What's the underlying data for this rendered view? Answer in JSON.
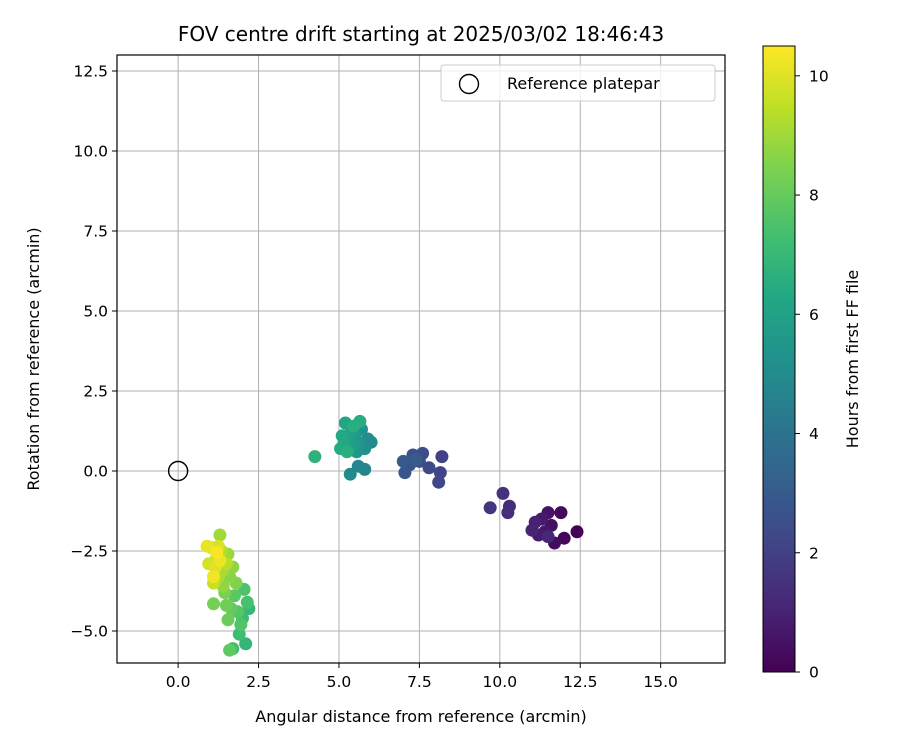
{
  "chart_data": {
    "type": "scatter",
    "title": "FOV centre drift starting at 2025/03/02 18:46:43",
    "xlabel": "Angular distance from reference (arcmin)",
    "ylabel": "Rotation from reference (arcmin)",
    "xlim": [
      -1.9,
      17.0
    ],
    "ylim": [
      -6.0,
      13.0
    ],
    "xticks": [
      0.0,
      2.5,
      5.0,
      7.5,
      10.0,
      12.5,
      15.0
    ],
    "xtick_labels": [
      "0.0",
      "2.5",
      "5.0",
      "7.5",
      "10.0",
      "12.5",
      "15.0"
    ],
    "yticks": [
      -5.0,
      -2.5,
      0.0,
      2.5,
      5.0,
      7.5,
      10.0,
      12.5
    ],
    "ytick_labels": [
      "−5.0",
      "−2.5",
      "0.0",
      "2.5",
      "5.0",
      "7.5",
      "10.0",
      "12.5"
    ],
    "grid": true,
    "legend": {
      "position": "top-right",
      "entries": [
        {
          "label": "Reference platepar",
          "marker": "open-circle"
        }
      ]
    },
    "colorbar": {
      "label": "Hours from first FF file",
      "range": [
        0,
        10.5
      ],
      "ticks": [
        0,
        2,
        4,
        6,
        8,
        10
      ],
      "tick_labels": [
        "0",
        "2",
        "4",
        "6",
        "8",
        "10"
      ],
      "colormap": "viridis"
    },
    "reference_point": {
      "x": 0.0,
      "y": 0.0
    },
    "points": [
      {
        "x": 12.4,
        "y": -1.9,
        "t": 0.05
      },
      {
        "x": 12.0,
        "y": -2.1,
        "t": 0.15
      },
      {
        "x": 11.9,
        "y": -1.3,
        "t": 0.25
      },
      {
        "x": 11.7,
        "y": -2.25,
        "t": 0.35
      },
      {
        "x": 11.6,
        "y": -1.7,
        "t": 0.45
      },
      {
        "x": 11.5,
        "y": -1.3,
        "t": 0.55
      },
      {
        "x": 11.4,
        "y": -1.9,
        "t": 0.65
      },
      {
        "x": 11.3,
        "y": -1.5,
        "t": 0.75
      },
      {
        "x": 11.2,
        "y": -2.0,
        "t": 0.85
      },
      {
        "x": 11.1,
        "y": -1.6,
        "t": 0.95
      },
      {
        "x": 11.0,
        "y": -1.85,
        "t": 1.05
      },
      {
        "x": 11.5,
        "y": -2.05,
        "t": 1.15
      },
      {
        "x": 10.3,
        "y": -1.1,
        "t": 1.3
      },
      {
        "x": 10.25,
        "y": -1.3,
        "t": 1.4
      },
      {
        "x": 10.1,
        "y": -0.7,
        "t": 1.5
      },
      {
        "x": 9.7,
        "y": -1.15,
        "t": 1.6
      },
      {
        "x": 8.2,
        "y": 0.45,
        "t": 2.0
      },
      {
        "x": 8.15,
        "y": -0.05,
        "t": 2.1
      },
      {
        "x": 8.1,
        "y": -0.35,
        "t": 2.2
      },
      {
        "x": 7.8,
        "y": 0.1,
        "t": 2.3
      },
      {
        "x": 7.6,
        "y": 0.55,
        "t": 2.4
      },
      {
        "x": 7.5,
        "y": 0.3,
        "t": 2.5
      },
      {
        "x": 7.3,
        "y": 0.5,
        "t": 2.6
      },
      {
        "x": 7.2,
        "y": 0.2,
        "t": 2.7
      },
      {
        "x": 7.05,
        "y": -0.05,
        "t": 2.8
      },
      {
        "x": 7.0,
        "y": 0.3,
        "t": 2.9
      },
      {
        "x": 7.4,
        "y": 0.35,
        "t": 3.0
      },
      {
        "x": 5.8,
        "y": 0.05,
        "t": 4.7
      },
      {
        "x": 5.6,
        "y": 0.15,
        "t": 4.8
      },
      {
        "x": 5.35,
        "y": -0.1,
        "t": 4.9
      },
      {
        "x": 6.0,
        "y": 0.9,
        "t": 5.0
      },
      {
        "x": 5.9,
        "y": 1.0,
        "t": 5.1
      },
      {
        "x": 5.8,
        "y": 0.7,
        "t": 5.2
      },
      {
        "x": 5.7,
        "y": 1.3,
        "t": 5.3
      },
      {
        "x": 5.6,
        "y": 0.9,
        "t": 5.4
      },
      {
        "x": 5.55,
        "y": 0.6,
        "t": 5.5
      },
      {
        "x": 5.5,
        "y": 1.1,
        "t": 5.6
      },
      {
        "x": 5.45,
        "y": 0.8,
        "t": 5.7
      },
      {
        "x": 5.4,
        "y": 1.25,
        "t": 5.8
      },
      {
        "x": 5.3,
        "y": 0.7,
        "t": 5.9
      },
      {
        "x": 5.25,
        "y": 1.0,
        "t": 6.0
      },
      {
        "x": 5.2,
        "y": 1.5,
        "t": 6.1
      },
      {
        "x": 5.15,
        "y": 0.85,
        "t": 6.2
      },
      {
        "x": 5.1,
        "y": 1.1,
        "t": 6.3
      },
      {
        "x": 5.05,
        "y": 0.7,
        "t": 6.4
      },
      {
        "x": 5.65,
        "y": 1.55,
        "t": 6.5
      },
      {
        "x": 5.45,
        "y": 1.4,
        "t": 6.55
      },
      {
        "x": 5.25,
        "y": 0.6,
        "t": 6.6
      },
      {
        "x": 4.25,
        "y": 0.45,
        "t": 6.7
      },
      {
        "x": 2.1,
        "y": -5.4,
        "t": 6.9
      },
      {
        "x": 2.2,
        "y": -4.3,
        "t": 7.0
      },
      {
        "x": 2.0,
        "y": -4.6,
        "t": 7.1
      },
      {
        "x": 1.9,
        "y": -5.1,
        "t": 7.2
      },
      {
        "x": 1.7,
        "y": -5.55,
        "t": 7.3
      },
      {
        "x": 2.15,
        "y": -4.1,
        "t": 7.4
      },
      {
        "x": 2.05,
        "y": -3.7,
        "t": 7.5
      },
      {
        "x": 1.95,
        "y": -4.8,
        "t": 7.6
      },
      {
        "x": 1.85,
        "y": -4.4,
        "t": 7.7
      },
      {
        "x": 1.75,
        "y": -3.9,
        "t": 7.8
      },
      {
        "x": 1.6,
        "y": -5.6,
        "t": 7.9
      },
      {
        "x": 1.65,
        "y": -4.3,
        "t": 8.0
      },
      {
        "x": 1.55,
        "y": -4.65,
        "t": 8.1
      },
      {
        "x": 1.5,
        "y": -4.2,
        "t": 8.2
      },
      {
        "x": 1.1,
        "y": -4.15,
        "t": 8.3
      },
      {
        "x": 1.45,
        "y": -3.8,
        "t": 8.4
      },
      {
        "x": 1.8,
        "y": -3.5,
        "t": 8.5
      },
      {
        "x": 1.6,
        "y": -3.3,
        "t": 8.6
      },
      {
        "x": 1.7,
        "y": -3.0,
        "t": 8.7
      },
      {
        "x": 1.4,
        "y": -3.6,
        "t": 8.8
      },
      {
        "x": 1.55,
        "y": -2.6,
        "t": 8.9
      },
      {
        "x": 1.3,
        "y": -2.0,
        "t": 9.0
      },
      {
        "x": 1.4,
        "y": -3.1,
        "t": 9.1
      },
      {
        "x": 1.25,
        "y": -3.3,
        "t": 9.2
      },
      {
        "x": 1.35,
        "y": -2.5,
        "t": 9.3
      },
      {
        "x": 1.5,
        "y": -2.9,
        "t": 9.4
      },
      {
        "x": 1.2,
        "y": -2.7,
        "t": 9.5
      },
      {
        "x": 1.1,
        "y": -3.5,
        "t": 9.6
      },
      {
        "x": 1.05,
        "y": -2.4,
        "t": 9.7
      },
      {
        "x": 0.95,
        "y": -2.9,
        "t": 9.8
      },
      {
        "x": 1.25,
        "y": -2.35,
        "t": 9.9
      },
      {
        "x": 1.15,
        "y": -3.0,
        "t": 10.0
      },
      {
        "x": 0.9,
        "y": -2.35,
        "t": 10.1
      },
      {
        "x": 1.3,
        "y": -2.8,
        "t": 10.2
      },
      {
        "x": 1.1,
        "y": -3.3,
        "t": 10.3
      },
      {
        "x": 1.2,
        "y": -2.55,
        "t": 10.4
      }
    ]
  }
}
